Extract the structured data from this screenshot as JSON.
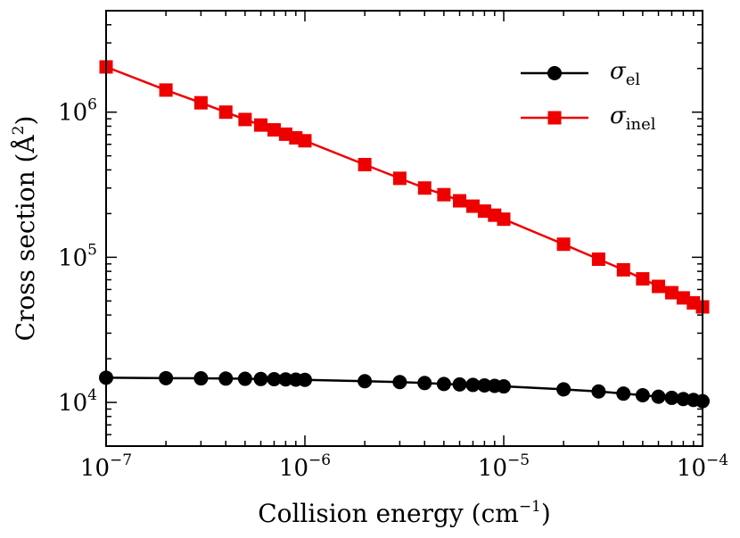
{
  "chart_data": {
    "type": "line",
    "xscale": "log",
    "yscale": "log",
    "xlim": [
      1e-07,
      0.0001
    ],
    "ylim": [
      5000,
      5000000
    ],
    "xlabel": "Collision energy (cm",
    "xlabel_exp": "−1",
    "xlabel_close": ")",
    "ylabel": "Cross section (Å",
    "ylabel_exp": "2",
    "ylabel_close": ")",
    "x_ticks": [
      {
        "value": 1e-07,
        "base": "10",
        "exp": "−7"
      },
      {
        "value": 1e-06,
        "base": "10",
        "exp": "−6"
      },
      {
        "value": 1e-05,
        "base": "10",
        "exp": "−5"
      },
      {
        "value": 0.0001,
        "base": "10",
        "exp": "−4"
      }
    ],
    "y_ticks": [
      {
        "value": 10000,
        "base": "10",
        "exp": "4"
      },
      {
        "value": 100000,
        "base": "10",
        "exp": "5"
      },
      {
        "value": 1000000,
        "base": "10",
        "exp": "6"
      }
    ],
    "legend_position": "top-right",
    "x": [
      1e-07,
      2e-07,
      3e-07,
      4e-07,
      5e-07,
      6e-07,
      7e-07,
      8e-07,
      9e-07,
      1e-06,
      2e-06,
      3e-06,
      4e-06,
      5e-06,
      6e-06,
      7e-06,
      8e-06,
      9e-06,
      1e-05,
      2e-05,
      3e-05,
      4e-05,
      5e-05,
      6e-05,
      7e-05,
      8e-05,
      9e-05,
      0.0001
    ],
    "series": [
      {
        "name": "σ",
        "subscript": "el",
        "color": "#000000",
        "marker": "circle",
        "values": [
          14800,
          14700,
          14650,
          14600,
          14550,
          14500,
          14450,
          14400,
          14350,
          14300,
          14000,
          13800,
          13600,
          13400,
          13300,
          13200,
          13100,
          13000,
          12900,
          12300,
          11900,
          11500,
          11200,
          10950,
          10750,
          10550,
          10400,
          10200
        ]
      },
      {
        "name": "σ",
        "subscript": "inel",
        "color": "#ee0000",
        "marker": "square",
        "values": [
          2050000,
          1420000,
          1160000,
          1000000,
          890000,
          815000,
          755000,
          705000,
          665000,
          635000,
          435000,
          350000,
          300000,
          270000,
          245000,
          225000,
          208000,
          195000,
          183000,
          123000,
          97000,
          82000,
          71000,
          63000,
          57000,
          52500,
          48500,
          45500
        ]
      }
    ]
  }
}
